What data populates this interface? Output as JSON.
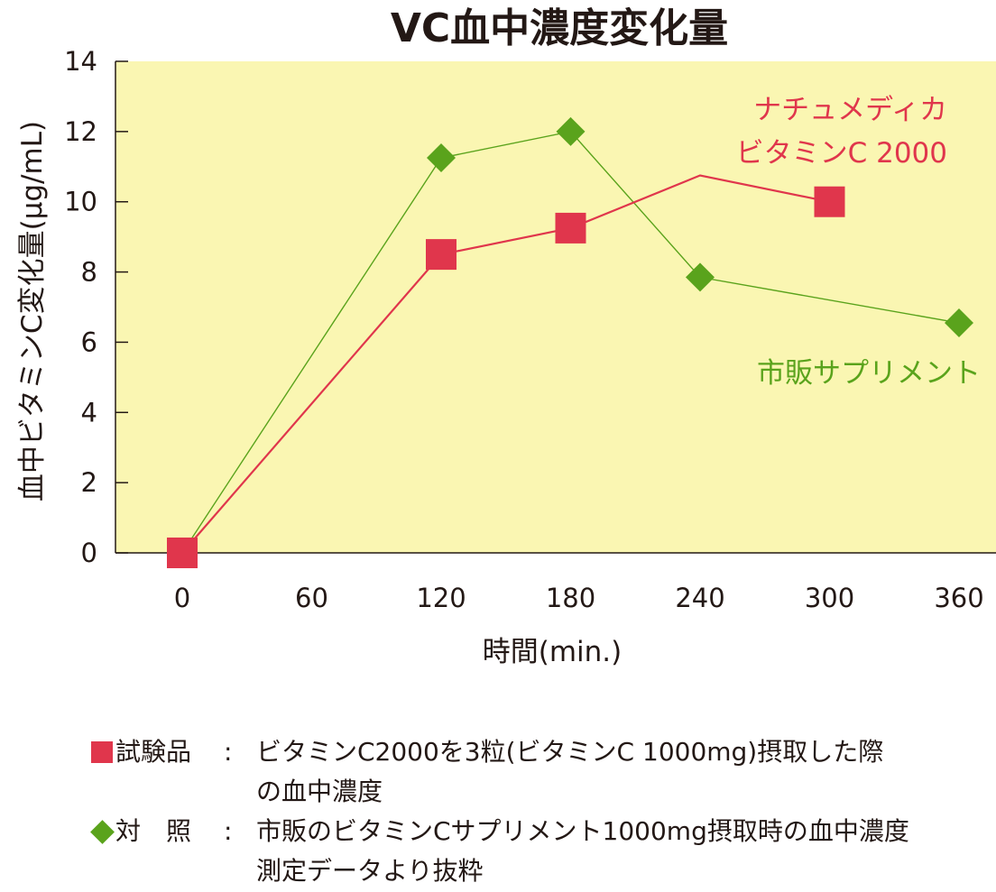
{
  "chart_data": {
    "type": "line",
    "title": "VC血中濃度変化量",
    "xlabel": "時間(min.)",
    "ylabel": "血中ビタミンC変化量(μg/mL)",
    "xlim": [
      -25,
      385
    ],
    "ylim": [
      0,
      14
    ],
    "xticks": [
      0,
      60,
      120,
      180,
      240,
      300,
      360
    ],
    "yticks": [
      0,
      2,
      4,
      6,
      8,
      10,
      12,
      14
    ],
    "x_tick_labels": [
      "0",
      "60",
      "120",
      "180",
      "240",
      "300",
      "360"
    ],
    "y_tick_labels": [
      "0",
      "2",
      "4",
      "6",
      "8",
      "10",
      "12",
      "14"
    ],
    "plot_background": "#faf6b2",
    "grid": false,
    "series": [
      {
        "name": "ナチュメディカ ビタミンC 2000",
        "label_lines": [
          "ナチュメディカ",
          "ビタミンC 2000"
        ],
        "color": "#e0364c",
        "marker": "square",
        "points": [
          {
            "x": 0,
            "y": 0,
            "marker": true
          },
          {
            "x": 120,
            "y": 8.5,
            "marker": true
          },
          {
            "x": 180,
            "y": 9.25,
            "marker": true
          },
          {
            "x": 240,
            "y": 10.75,
            "marker": false
          },
          {
            "x": 300,
            "y": 10.0,
            "marker": true
          }
        ]
      },
      {
        "name": "市販サプリメント",
        "label_lines": [
          "市販サプリメント"
        ],
        "color": "#5aa31c",
        "marker": "diamond",
        "points": [
          {
            "x": 0,
            "y": 0,
            "marker": true
          },
          {
            "x": 120,
            "y": 11.25,
            "marker": true
          },
          {
            "x": 180,
            "y": 12.0,
            "marker": true
          },
          {
            "x": 240,
            "y": 7.85,
            "marker": true
          },
          {
            "x": 360,
            "y": 6.55,
            "marker": true
          }
        ]
      }
    ]
  },
  "legend": [
    {
      "marker": "square",
      "name": "試験品",
      "colon": ":",
      "lines": [
        "ビタミンC2000を3粒(ビタミンC 1000mg)摂取した際",
        "の血中濃度"
      ]
    },
    {
      "marker": "diamond",
      "name": "対　照",
      "colon": ":",
      "lines": [
        "市販のビタミンCサプリメント1000mg摂取時の血中濃度",
        "測定データより抜粋"
      ]
    }
  ]
}
